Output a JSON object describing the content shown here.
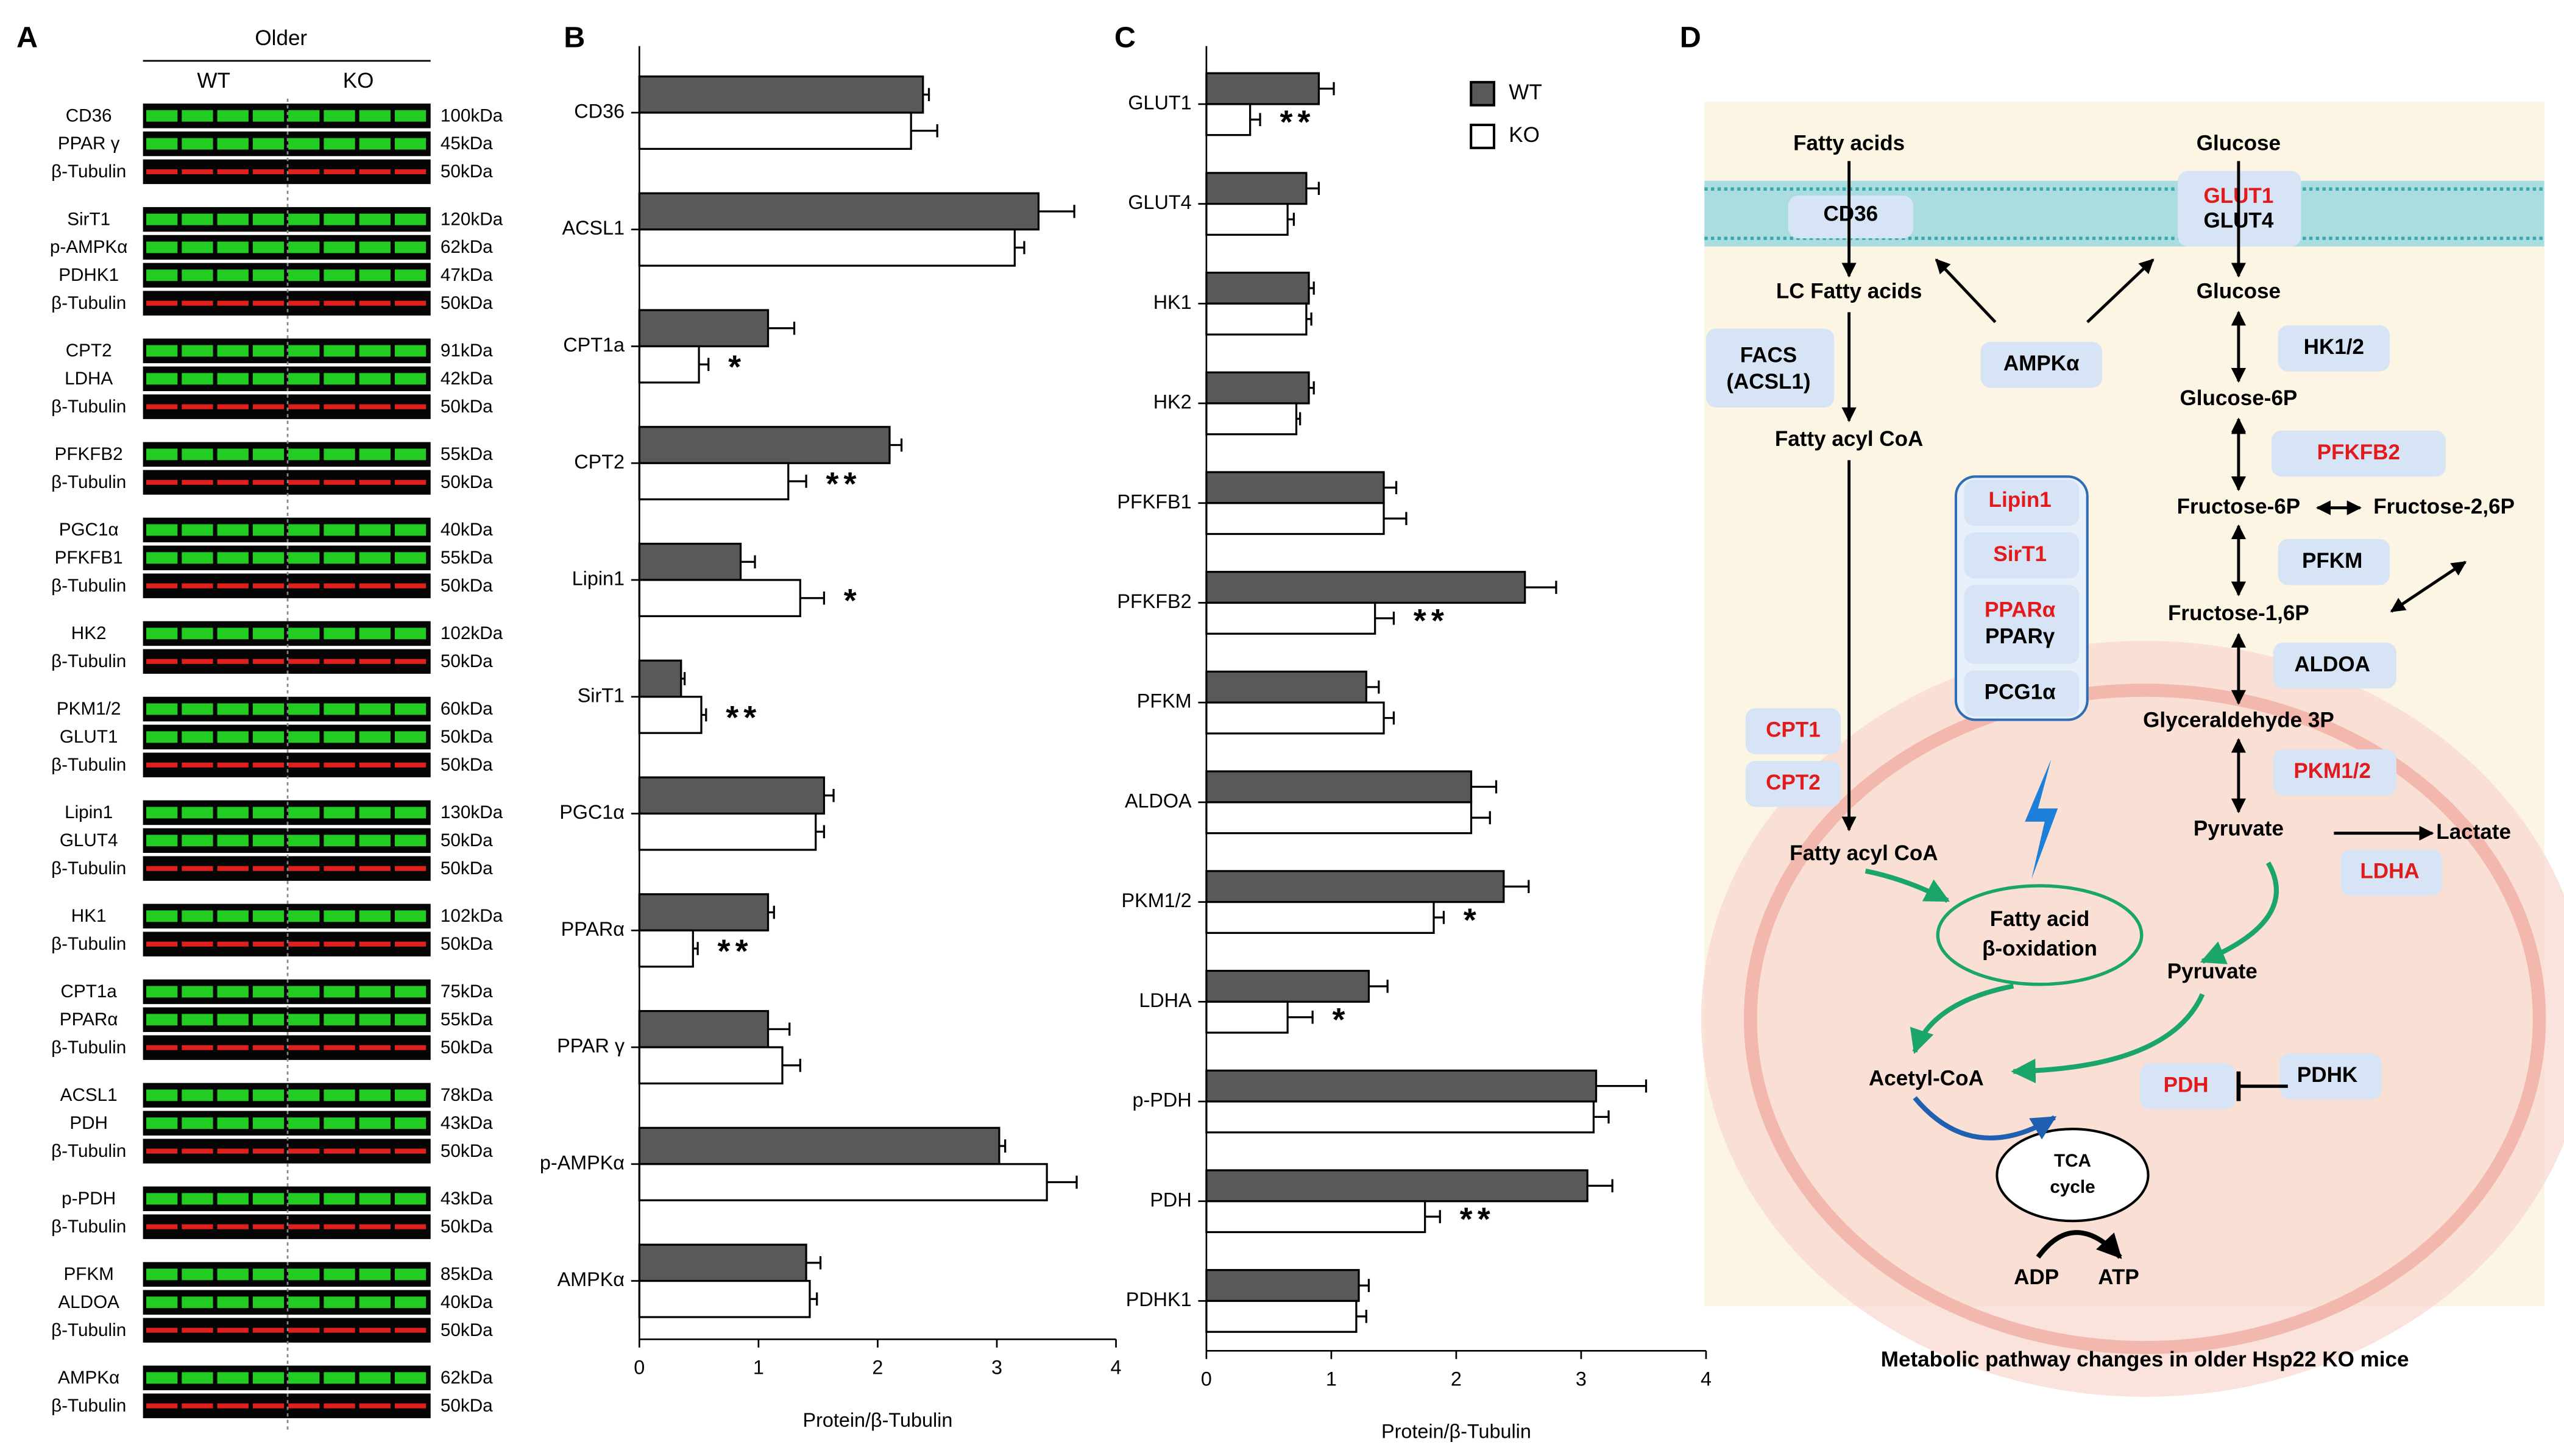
{
  "panels": [
    "A",
    "B",
    "C",
    "D"
  ],
  "blot": {
    "title": "Older",
    "group_labels": [
      "WT",
      "KO"
    ],
    "groups": [
      [
        {
          "protein": "CD36",
          "size": "100kDa",
          "color": "#22cc22"
        },
        {
          "protein": "PPAR γ",
          "size": "45kDa",
          "color": "#22cc22"
        },
        {
          "protein": "β-Tubulin",
          "size": "50kDa",
          "color": "#e0201c"
        }
      ],
      [
        {
          "protein": "SirT1",
          "size": "120kDa",
          "color": "#22cc22"
        },
        {
          "protein": "p-AMPKα",
          "size": "62kDa",
          "color": "#22cc22"
        },
        {
          "protein": "PDHK1",
          "size": "47kDa",
          "color": "#22cc22"
        },
        {
          "protein": "β-Tubulin",
          "size": "50kDa",
          "color": "#e0201c"
        }
      ],
      [
        {
          "protein": "CPT2",
          "size": "91kDa",
          "color": "#22cc22"
        },
        {
          "protein": "LDHA",
          "size": "42kDa",
          "color": "#22cc22"
        },
        {
          "protein": "β-Tubulin",
          "size": "50kDa",
          "color": "#e0201c"
        }
      ],
      [
        {
          "protein": "PFKFB2",
          "size": "55kDa",
          "color": "#22cc22"
        },
        {
          "protein": "β-Tubulin",
          "size": "50kDa",
          "color": "#e0201c"
        }
      ],
      [
        {
          "protein": "PGC1α",
          "size": "40kDa",
          "color": "#22cc22"
        },
        {
          "protein": "PFKFB1",
          "size": "55kDa",
          "color": "#22cc22"
        },
        {
          "protein": "β-Tubulin",
          "size": "50kDa",
          "color": "#e0201c"
        }
      ],
      [
        {
          "protein": "HK2",
          "size": "102kDa",
          "color": "#22cc22"
        },
        {
          "protein": "β-Tubulin",
          "size": "50kDa",
          "color": "#e0201c"
        }
      ],
      [
        {
          "protein": "PKM1/2",
          "size": "60kDa",
          "color": "#22cc22"
        },
        {
          "protein": "GLUT1",
          "size": "50kDa",
          "color": "#22cc22"
        },
        {
          "protein": "β-Tubulin",
          "size": "50kDa",
          "color": "#e0201c"
        }
      ],
      [
        {
          "protein": "Lipin1",
          "size": "130kDa",
          "color": "#22cc22"
        },
        {
          "protein": "GLUT4",
          "size": "50kDa",
          "color": "#22cc22"
        },
        {
          "protein": "β-Tubulin",
          "size": "50kDa",
          "color": "#e0201c"
        }
      ],
      [
        {
          "protein": "HK1",
          "size": "102kDa",
          "color": "#22cc22"
        },
        {
          "protein": "β-Tubulin",
          "size": "50kDa",
          "color": "#e0201c"
        }
      ],
      [
        {
          "protein": "CPT1a",
          "size": "75kDa",
          "color": "#22cc22"
        },
        {
          "protein": "PPARα",
          "size": "55kDa",
          "color": "#22cc22"
        },
        {
          "protein": "β-Tubulin",
          "size": "50kDa",
          "color": "#e0201c"
        }
      ],
      [
        {
          "protein": "ACSL1",
          "size": "78kDa",
          "color": "#22cc22"
        },
        {
          "protein": "PDH",
          "size": "43kDa",
          "color": "#22cc22"
        },
        {
          "protein": "β-Tubulin",
          "size": "50kDa",
          "color": "#e0201c"
        }
      ],
      [
        {
          "protein": "p-PDH",
          "size": "43kDa",
          "color": "#22cc22"
        },
        {
          "protein": "β-Tubulin",
          "size": "50kDa",
          "color": "#e0201c"
        }
      ],
      [
        {
          "protein": "PFKM",
          "size": "85kDa",
          "color": "#22cc22"
        },
        {
          "protein": "ALDOA",
          "size": "40kDa",
          "color": "#22cc22"
        },
        {
          "protein": "β-Tubulin",
          "size": "50kDa",
          "color": "#e0201c"
        }
      ],
      [
        {
          "protein": "AMPKα",
          "size": "62kDa",
          "color": "#22cc22"
        },
        {
          "protein": "β-Tubulin",
          "size": "50kDa",
          "color": "#e0201c"
        }
      ]
    ]
  },
  "chart_data": [
    {
      "type": "hbar",
      "x_label": "Protein/β-Tubulin",
      "xlim": [
        0,
        4
      ],
      "xticks": [
        0,
        1,
        2,
        3,
        4
      ],
      "categories": [
        "CD36",
        "ACSL1",
        "CPT1a",
        "CPT2",
        "Lipin1",
        "SirT1",
        "PGC1α",
        "PPARα",
        "PPAR γ",
        "p-AMPKα",
        "AMPKα"
      ],
      "series": [
        {
          "name": "WT",
          "color": "#595959",
          "values": [
            2.38,
            3.35,
            1.08,
            2.1,
            0.85,
            0.35,
            1.55,
            1.08,
            1.08,
            3.02,
            1.4
          ],
          "errors": [
            0.05,
            0.3,
            0.22,
            0.1,
            0.12,
            0.03,
            0.08,
            0.05,
            0.18,
            0.05,
            0.12
          ]
        },
        {
          "name": "KO",
          "color": "#ffffff",
          "values": [
            2.28,
            3.15,
            0.5,
            1.25,
            1.35,
            0.52,
            1.48,
            0.45,
            1.2,
            3.42,
            1.43
          ],
          "errors": [
            0.22,
            0.08,
            0.08,
            0.15,
            0.2,
            0.04,
            0.07,
            0.04,
            0.15,
            0.25,
            0.06
          ]
        }
      ],
      "significance": [
        null,
        null,
        "*",
        "**",
        "*",
        "**",
        null,
        "**",
        null,
        null,
        null
      ],
      "significance_color": "#e31a1c",
      "legend": null
    },
    {
      "type": "hbar",
      "x_label": "Protein/β-Tubulin",
      "xlim": [
        0,
        4
      ],
      "xticks": [
        0,
        1,
        2,
        3,
        4
      ],
      "categories": [
        "GLUT1",
        "GLUT4",
        "HK1",
        "HK2",
        "PFKFB1",
        "PFKFB2",
        "PFKM",
        "ALDOA",
        "PKM1/2",
        "LDHA",
        "p-PDH",
        "PDH",
        "PDHK1"
      ],
      "series": [
        {
          "name": "WT",
          "color": "#595959",
          "values": [
            0.9,
            0.8,
            0.82,
            0.82,
            1.42,
            2.55,
            1.28,
            2.12,
            2.38,
            1.3,
            3.12,
            3.05,
            1.22
          ],
          "errors": [
            0.12,
            0.1,
            0.04,
            0.04,
            0.1,
            0.25,
            0.1,
            0.2,
            0.2,
            0.15,
            0.4,
            0.2,
            0.08
          ]
        },
        {
          "name": "KO",
          "color": "#ffffff",
          "values": [
            0.35,
            0.65,
            0.8,
            0.72,
            1.42,
            1.35,
            1.42,
            2.12,
            1.82,
            0.65,
            3.1,
            1.75,
            1.2
          ],
          "errors": [
            0.08,
            0.05,
            0.04,
            0.03,
            0.18,
            0.15,
            0.08,
            0.15,
            0.08,
            0.2,
            0.12,
            0.12,
            0.08
          ]
        }
      ],
      "significance": [
        "**",
        null,
        null,
        null,
        null,
        "**",
        null,
        null,
        "*",
        "*",
        null,
        "**",
        null
      ],
      "significance_color": "#e31a1c",
      "legend": "upper right"
    }
  ],
  "diagram": {
    "title": "Metabolic pathway changes  in older Hsp22  KO mice",
    "nodes": [
      "Fatty acids",
      "Glucose",
      "CD36",
      "GLUT1",
      "GLUT4",
      "LC Fatty acids",
      "Glucose",
      "AMPKα",
      "FACS",
      "(ACSL1)",
      "HK1/2",
      "Fatty acyl CoA",
      "Glucose-6P",
      "PFKFB2",
      "Fructose-6P",
      "Fructose-2,6P",
      "Lipin1",
      "SirT1",
      "PPARα",
      "PPARγ",
      "PCG1α",
      "PFKM",
      "Fructose-1,6P",
      "ALDOA",
      "CPT1",
      "Glyceraldehyde 3P",
      "PKM1/2",
      "CPT2",
      "Pyruvate",
      "Lactate",
      "LDHA",
      "Fatty acyl CoA",
      "Fatty acid",
      "β-oxidation",
      "Pyruvate",
      "Acetyl-CoA",
      "PDH",
      "PDHK",
      "TCA",
      "cycle",
      "ADP",
      "ATP"
    ]
  }
}
